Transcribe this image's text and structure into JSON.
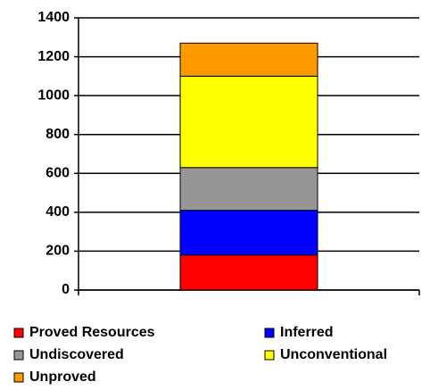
{
  "chart_data": {
    "type": "stacked_bar",
    "categories": [
      null
    ],
    "series": [
      {
        "name": "Proved Resources",
        "color": "#ff0000",
        "values": [
          180
        ]
      },
      {
        "name": "Inferred",
        "color": "#0000ff",
        "values": [
          230
        ]
      },
      {
        "name": "Undiscovered",
        "color": "#969696",
        "values": [
          220
        ]
      },
      {
        "name": "Unconventional",
        "color": "#ffff00",
        "values": [
          470
        ]
      },
      {
        "name": "Unproved",
        "color": "#ff9900",
        "values": [
          170
        ]
      }
    ],
    "ylim": [
      0,
      1400
    ],
    "yticks": [
      0,
      200,
      400,
      600,
      800,
      1000,
      1200,
      1400
    ],
    "grid": true,
    "legend": "bottom"
  }
}
